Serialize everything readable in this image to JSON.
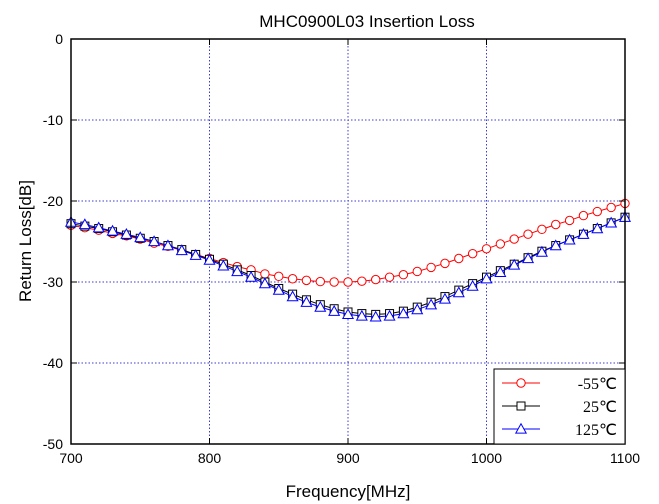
{
  "chart_data": {
    "type": "line",
    "title": "MHC0900L03 Insertion Loss",
    "xlabel": "Frequency[MHz]",
    "ylabel": "Return Loss[dB]",
    "xlim": [
      700,
      1100
    ],
    "ylim": [
      -50,
      0
    ],
    "x_ticks": [
      "700",
      "800",
      "900",
      "1000",
      "1100"
    ],
    "y_ticks": [
      "0",
      "-10",
      "-20",
      "-30",
      "-40",
      "-50"
    ],
    "grid": true,
    "legend_position": "bottom-right",
    "series": [
      {
        "name": "-55℃",
        "color": "#ff0000",
        "marker": "circle",
        "x": [
          700,
          710,
          720,
          730,
          740,
          750,
          760,
          770,
          780,
          790,
          800,
          810,
          820,
          830,
          840,
          850,
          860,
          870,
          880,
          890,
          900,
          910,
          920,
          930,
          940,
          950,
          960,
          970,
          980,
          990,
          1000,
          1010,
          1020,
          1030,
          1040,
          1050,
          1060,
          1070,
          1080,
          1090,
          1100
        ],
        "y": [
          -23.0,
          -23.3,
          -23.6,
          -24.0,
          -24.3,
          -24.7,
          -25.2,
          -25.6,
          -26.1,
          -26.6,
          -27.1,
          -27.6,
          -28.1,
          -28.5,
          -29.0,
          -29.3,
          -29.6,
          -29.8,
          -29.95,
          -30.0,
          -30.0,
          -29.9,
          -29.7,
          -29.4,
          -29.1,
          -28.7,
          -28.2,
          -27.7,
          -27.1,
          -26.5,
          -25.9,
          -25.3,
          -24.7,
          -24.1,
          -23.5,
          -22.9,
          -22.4,
          -21.8,
          -21.3,
          -20.8,
          -20.3
        ]
      },
      {
        "name": "25℃",
        "color": "#000000",
        "marker": "square",
        "x": [
          700,
          710,
          720,
          730,
          740,
          750,
          760,
          770,
          780,
          790,
          800,
          810,
          820,
          830,
          840,
          850,
          860,
          870,
          880,
          890,
          900,
          910,
          920,
          930,
          940,
          950,
          960,
          970,
          980,
          990,
          1000,
          1010,
          1020,
          1030,
          1040,
          1050,
          1060,
          1070,
          1080,
          1090,
          1100
        ],
        "y": [
          -22.8,
          -23.1,
          -23.4,
          -23.8,
          -24.2,
          -24.6,
          -25.0,
          -25.5,
          -26.0,
          -26.6,
          -27.2,
          -27.8,
          -28.5,
          -29.2,
          -30.0,
          -30.8,
          -31.5,
          -32.2,
          -32.8,
          -33.3,
          -33.7,
          -33.9,
          -34.0,
          -33.9,
          -33.6,
          -33.1,
          -32.5,
          -31.8,
          -31.0,
          -30.2,
          -29.4,
          -28.6,
          -27.8,
          -27.0,
          -26.2,
          -25.5,
          -24.8,
          -24.1,
          -23.4,
          -22.7,
          -22.0
        ]
      },
      {
        "name": "125℃",
        "color": "#0000ff",
        "marker": "triangle",
        "x": [
          700,
          710,
          720,
          730,
          740,
          750,
          760,
          770,
          780,
          790,
          800,
          810,
          820,
          830,
          840,
          850,
          860,
          870,
          880,
          890,
          900,
          910,
          920,
          930,
          940,
          950,
          960,
          970,
          980,
          990,
          1000,
          1010,
          1020,
          1030,
          1040,
          1050,
          1060,
          1070,
          1080,
          1090,
          1100
        ],
        "y": [
          -22.6,
          -22.9,
          -23.3,
          -23.7,
          -24.1,
          -24.5,
          -25.0,
          -25.5,
          -26.1,
          -26.7,
          -27.3,
          -28.0,
          -28.7,
          -29.4,
          -30.2,
          -31.0,
          -31.8,
          -32.5,
          -33.1,
          -33.6,
          -34.0,
          -34.2,
          -34.3,
          -34.2,
          -33.9,
          -33.4,
          -32.8,
          -32.1,
          -31.3,
          -30.5,
          -29.6,
          -28.8,
          -27.9,
          -27.1,
          -26.3,
          -25.5,
          -24.8,
          -24.1,
          -23.4,
          -22.7,
          -22.0
        ]
      }
    ]
  }
}
